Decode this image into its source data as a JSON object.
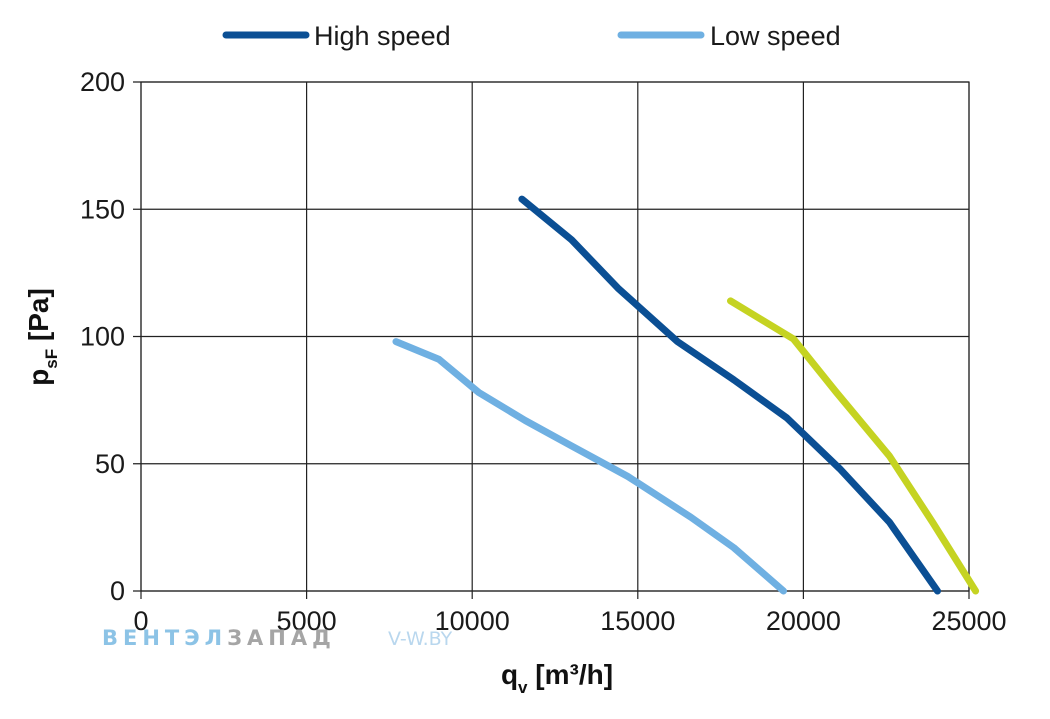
{
  "chart_data": {
    "type": "line",
    "title": "",
    "xlabel": {
      "main": "q",
      "sub": "v",
      "unit": " [m³/h]"
    },
    "ylabel": {
      "main": "p",
      "sub": "sF",
      "unit": " [Pa]"
    },
    "xlim": [
      0,
      25000
    ],
    "ylim": [
      0,
      200
    ],
    "xticks": [
      0,
      5000,
      10000,
      15000,
      20000,
      25000
    ],
    "yticks": [
      0,
      50,
      100,
      150,
      200
    ],
    "grid": true,
    "legend_position": "top",
    "series": [
      {
        "name": "High speed",
        "color": "#0b4f94",
        "x": [
          11500,
          13000,
          14400,
          16200,
          17900,
          19500,
          21100,
          22600,
          24050
        ],
        "y": [
          154,
          138,
          119,
          98,
          83,
          68,
          48,
          27,
          0
        ]
      },
      {
        "name": "Low speed",
        "color": "#6fb0e2",
        "x": [
          7700,
          9000,
          10200,
          11600,
          13000,
          14700,
          16600,
          17900,
          19400
        ],
        "y": [
          98,
          91,
          78,
          67,
          57,
          45,
          29,
          17,
          0
        ]
      },
      {
        "name": "",
        "color": "#c5d322",
        "x": [
          17800,
          19700,
          21000,
          22600,
          23900,
          25200
        ],
        "y": [
          114,
          99,
          78,
          53,
          27,
          0
        ]
      }
    ]
  },
  "watermark": {
    "part1": "ВЕНТЭЛ",
    "part2": "ЗАПАД",
    "url": "V-W.BY"
  }
}
